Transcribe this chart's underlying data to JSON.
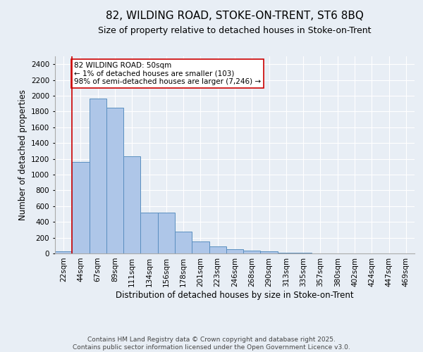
{
  "title1": "82, WILDING ROAD, STOKE-ON-TRENT, ST6 8BQ",
  "title2": "Size of property relative to detached houses in Stoke-on-Trent",
  "xlabel": "Distribution of detached houses by size in Stoke-on-Trent",
  "ylabel": "Number of detached properties",
  "categories": [
    "22sqm",
    "44sqm",
    "67sqm",
    "89sqm",
    "111sqm",
    "134sqm",
    "156sqm",
    "178sqm",
    "201sqm",
    "223sqm",
    "246sqm",
    "268sqm",
    "290sqm",
    "313sqm",
    "335sqm",
    "357sqm",
    "380sqm",
    "402sqm",
    "424sqm",
    "447sqm",
    "469sqm"
  ],
  "values": [
    25,
    1165,
    1960,
    1850,
    1230,
    515,
    515,
    280,
    155,
    90,
    50,
    35,
    30,
    10,
    5,
    3,
    2,
    2,
    2,
    2,
    2
  ],
  "bar_color": "#aec6e8",
  "bar_edge_color": "#5a8fc0",
  "vline_color": "#cc0000",
  "annotation_text": "82 WILDING ROAD: 50sqm\n← 1% of detached houses are smaller (103)\n98% of semi-detached houses are larger (7,246) →",
  "annotation_box_color": "#ffffff",
  "annotation_box_edge_color": "#cc0000",
  "bg_color": "#e8eef5",
  "plot_bg_color": "#e8eef5",
  "footer1": "Contains HM Land Registry data © Crown copyright and database right 2025.",
  "footer2": "Contains public sector information licensed under the Open Government Licence v3.0.",
  "ylim": [
    0,
    2500
  ],
  "yticks": [
    0,
    200,
    400,
    600,
    800,
    1000,
    1200,
    1400,
    1600,
    1800,
    2000,
    2200,
    2400
  ],
  "title1_fontsize": 11,
  "title2_fontsize": 9,
  "xlabel_fontsize": 8.5,
  "ylabel_fontsize": 8.5,
  "tick_fontsize": 7.5,
  "annotation_fontsize": 7.5,
  "footer_fontsize": 6.5
}
